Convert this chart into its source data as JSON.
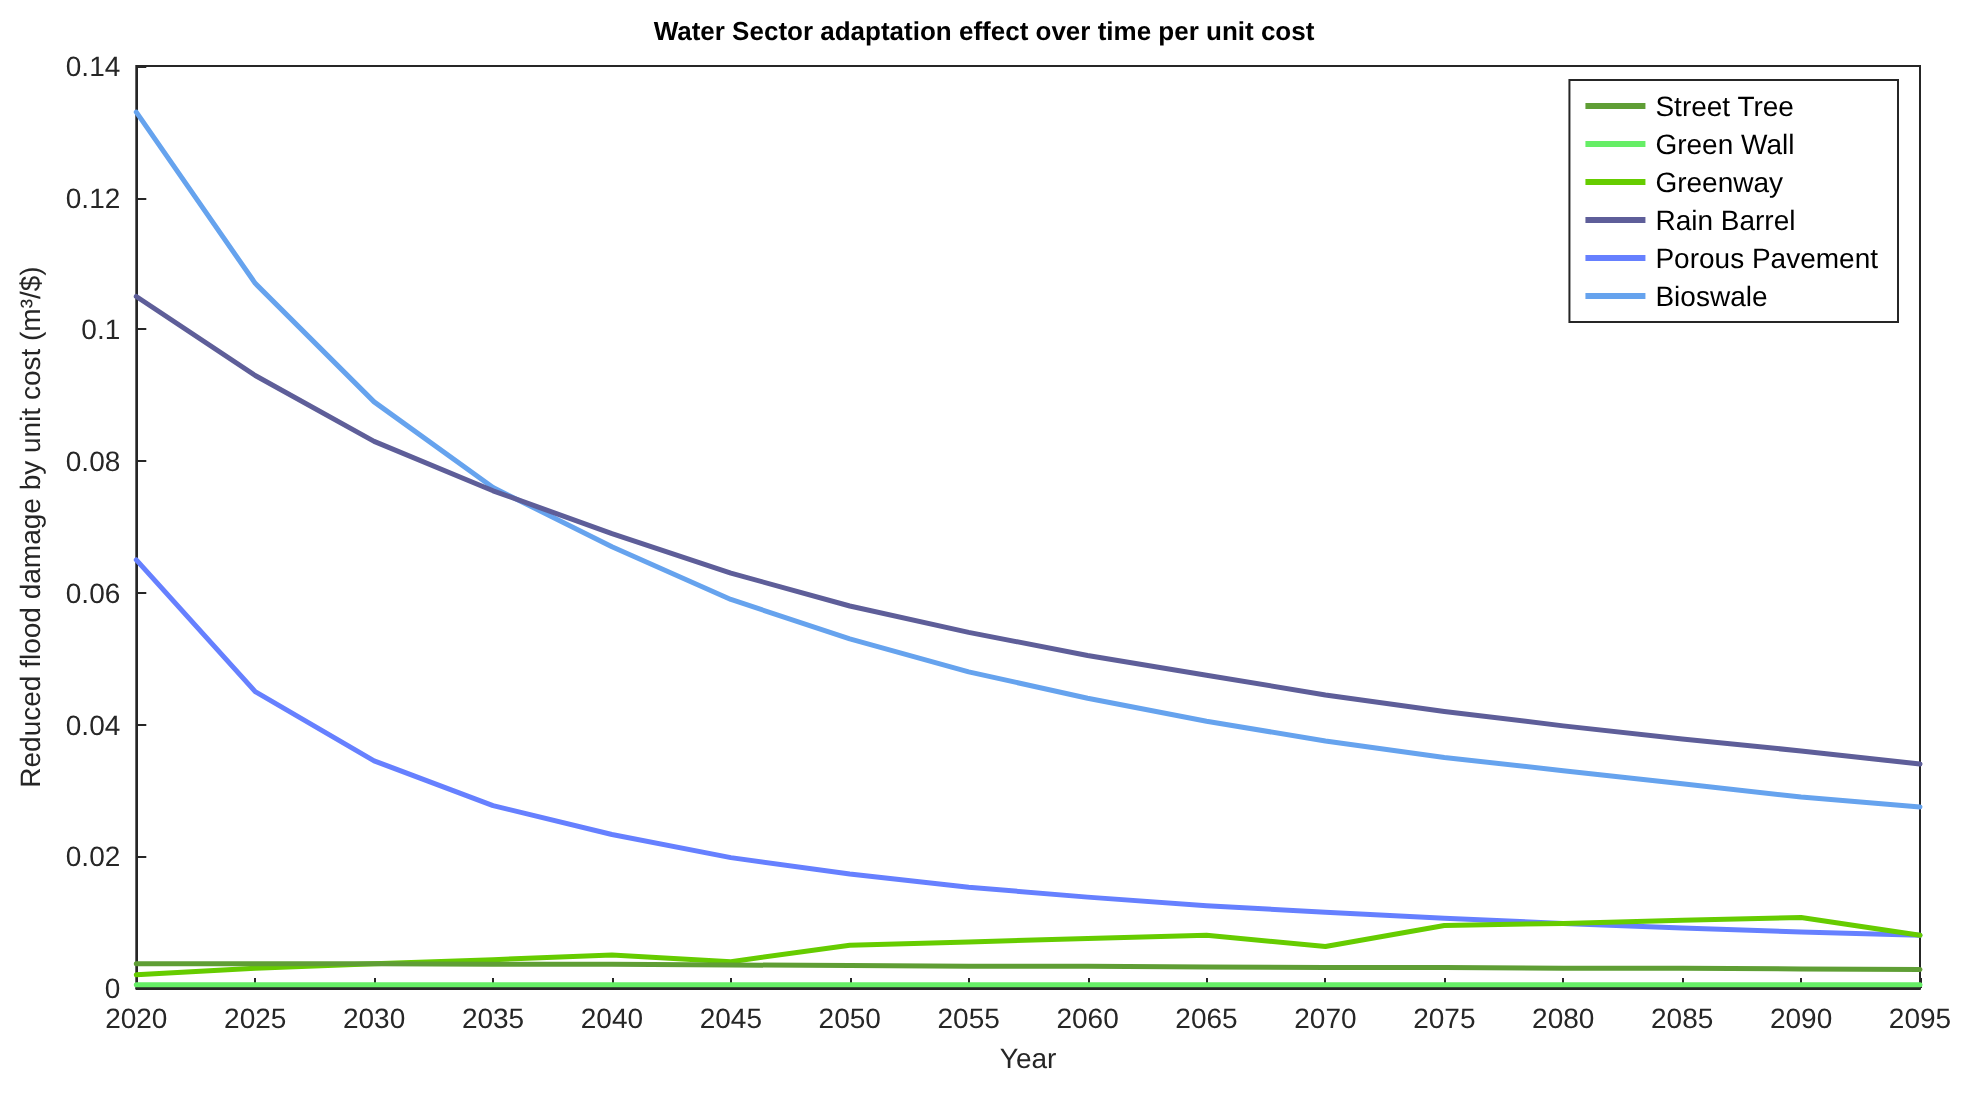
{
  "chart_data": {
    "type": "line",
    "title": "Water Sector adaptation effect over time per unit cost",
    "xlabel": "Year",
    "ylabel": "Reduced flood damage by unit cost (m³/$)",
    "x": [
      2020,
      2025,
      2030,
      2035,
      2040,
      2045,
      2050,
      2055,
      2060,
      2065,
      2070,
      2075,
      2080,
      2085,
      2090,
      2095
    ],
    "series": [
      {
        "name": "Street Tree",
        "color": "#5f9e35",
        "values": [
          0.0037,
          0.0037,
          0.0037,
          0.0036,
          0.0036,
          0.0035,
          0.0034,
          0.0033,
          0.0033,
          0.0032,
          0.0031,
          0.0031,
          0.003,
          0.003,
          0.0029,
          0.0028
        ]
      },
      {
        "name": "Green Wall",
        "color": "#66ee66",
        "values": [
          0.0005,
          0.0005,
          0.0005,
          0.0005,
          0.0005,
          0.0005,
          0.0005,
          0.0005,
          0.0005,
          0.0005,
          0.0005,
          0.0005,
          0.0005,
          0.0005,
          0.0005,
          0.0005
        ]
      },
      {
        "name": "Greenway",
        "color": "#66cc00",
        "values": [
          0.002,
          0.003,
          0.0037,
          0.0043,
          0.005,
          0.004,
          0.0065,
          0.007,
          0.0075,
          0.008,
          0.0063,
          0.0095,
          0.0098,
          0.0103,
          0.0107,
          0.008
        ]
      },
      {
        "name": "Rain Barrel",
        "color": "#5e5e99",
        "values": [
          0.105,
          0.093,
          0.083,
          0.0755,
          0.069,
          0.063,
          0.058,
          0.054,
          0.0505,
          0.0475,
          0.0445,
          0.042,
          0.0398,
          0.0378,
          0.036,
          0.034
        ]
      },
      {
        "name": "Porous Pavement",
        "color": "#6680ff",
        "values": [
          0.065,
          0.045,
          0.0345,
          0.0277,
          0.0233,
          0.0198,
          0.0173,
          0.0153,
          0.0138,
          0.0125,
          0.0115,
          0.0106,
          0.0098,
          0.0091,
          0.0085,
          0.008
        ]
      },
      {
        "name": "Bioswale",
        "color": "#66a3ee",
        "values": [
          0.133,
          0.107,
          0.089,
          0.076,
          0.067,
          0.059,
          0.053,
          0.048,
          0.044,
          0.0405,
          0.0375,
          0.035,
          0.033,
          0.031,
          0.029,
          0.0275
        ]
      }
    ],
    "xlim": [
      2020,
      2095
    ],
    "xticks": [
      2020,
      2025,
      2030,
      2035,
      2040,
      2045,
      2050,
      2055,
      2060,
      2065,
      2070,
      2075,
      2080,
      2085,
      2090,
      2095
    ],
    "ylim": [
      0,
      0.14
    ],
    "yticks": [
      0,
      0.02,
      0.04,
      0.06,
      0.08,
      0.1,
      0.12,
      0.14
    ],
    "grid": false,
    "legend": "top right",
    "marker": "none",
    "line_style": "solid"
  }
}
